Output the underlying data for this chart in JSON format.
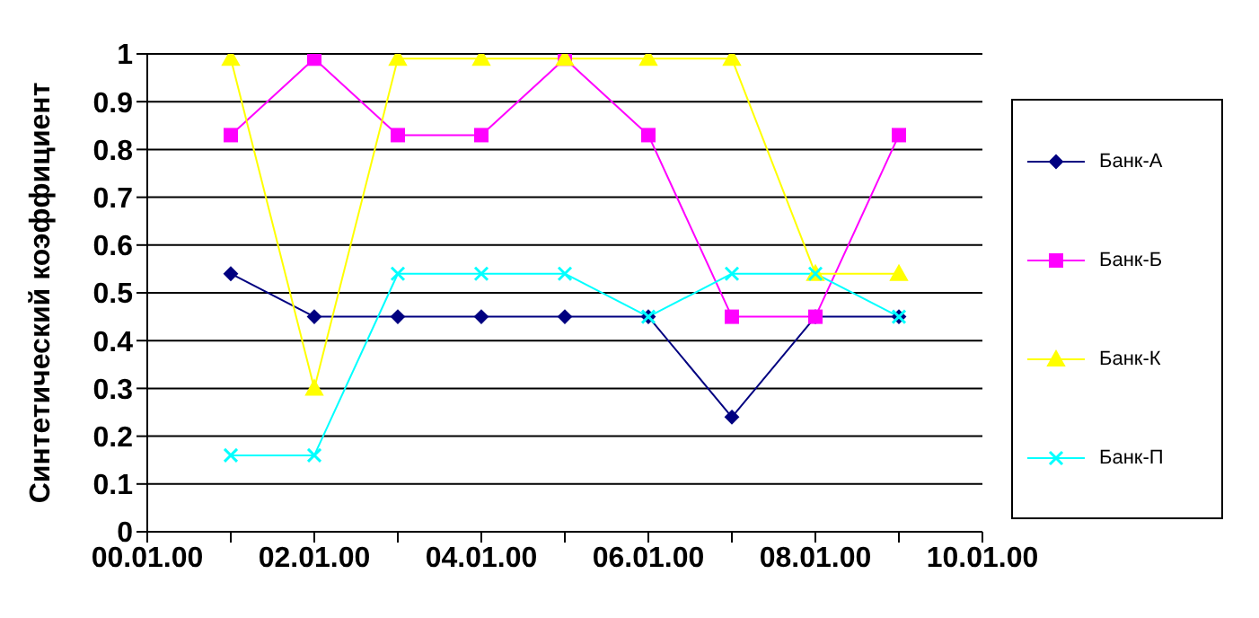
{
  "chart_data": {
    "type": "line",
    "ylabel": "Синтетический коэффициент",
    "categories": [
      "00.01.00",
      null,
      "02.01.00",
      null,
      "04.01.00",
      null,
      "06.01.00",
      null,
      "08.01.00",
      null,
      "10.01.00"
    ],
    "ylim": [
      0,
      1
    ],
    "yticks": [
      0,
      0.1,
      0.2,
      0.3,
      0.4,
      0.5,
      0.6,
      0.7,
      0.8,
      0.9,
      1
    ],
    "grid": "y",
    "legend": "right",
    "line_style": "solid",
    "series": [
      {
        "name": "Банк-А",
        "color": "#000080",
        "marker": "diamond",
        "values": [
          null,
          0.54,
          0.45,
          0.45,
          0.45,
          0.45,
          0.45,
          0.24,
          0.45,
          0.45,
          null
        ]
      },
      {
        "name": "Банк-Б",
        "color": "#ff00ff",
        "marker": "square",
        "values": [
          null,
          0.83,
          0.99,
          0.83,
          0.83,
          0.99,
          0.83,
          0.45,
          0.45,
          0.83,
          null
        ]
      },
      {
        "name": "Банк-К",
        "color": "#ffff00",
        "marker": "triangle",
        "values": [
          null,
          0.99,
          0.3,
          0.99,
          0.99,
          0.99,
          0.99,
          0.99,
          0.54,
          0.54,
          null
        ]
      },
      {
        "name": "Банк-П",
        "color": "#00ffff",
        "marker": "cross",
        "values": [
          null,
          0.16,
          0.16,
          0.54,
          0.54,
          0.54,
          0.45,
          0.54,
          0.54,
          0.45,
          null
        ]
      }
    ]
  }
}
